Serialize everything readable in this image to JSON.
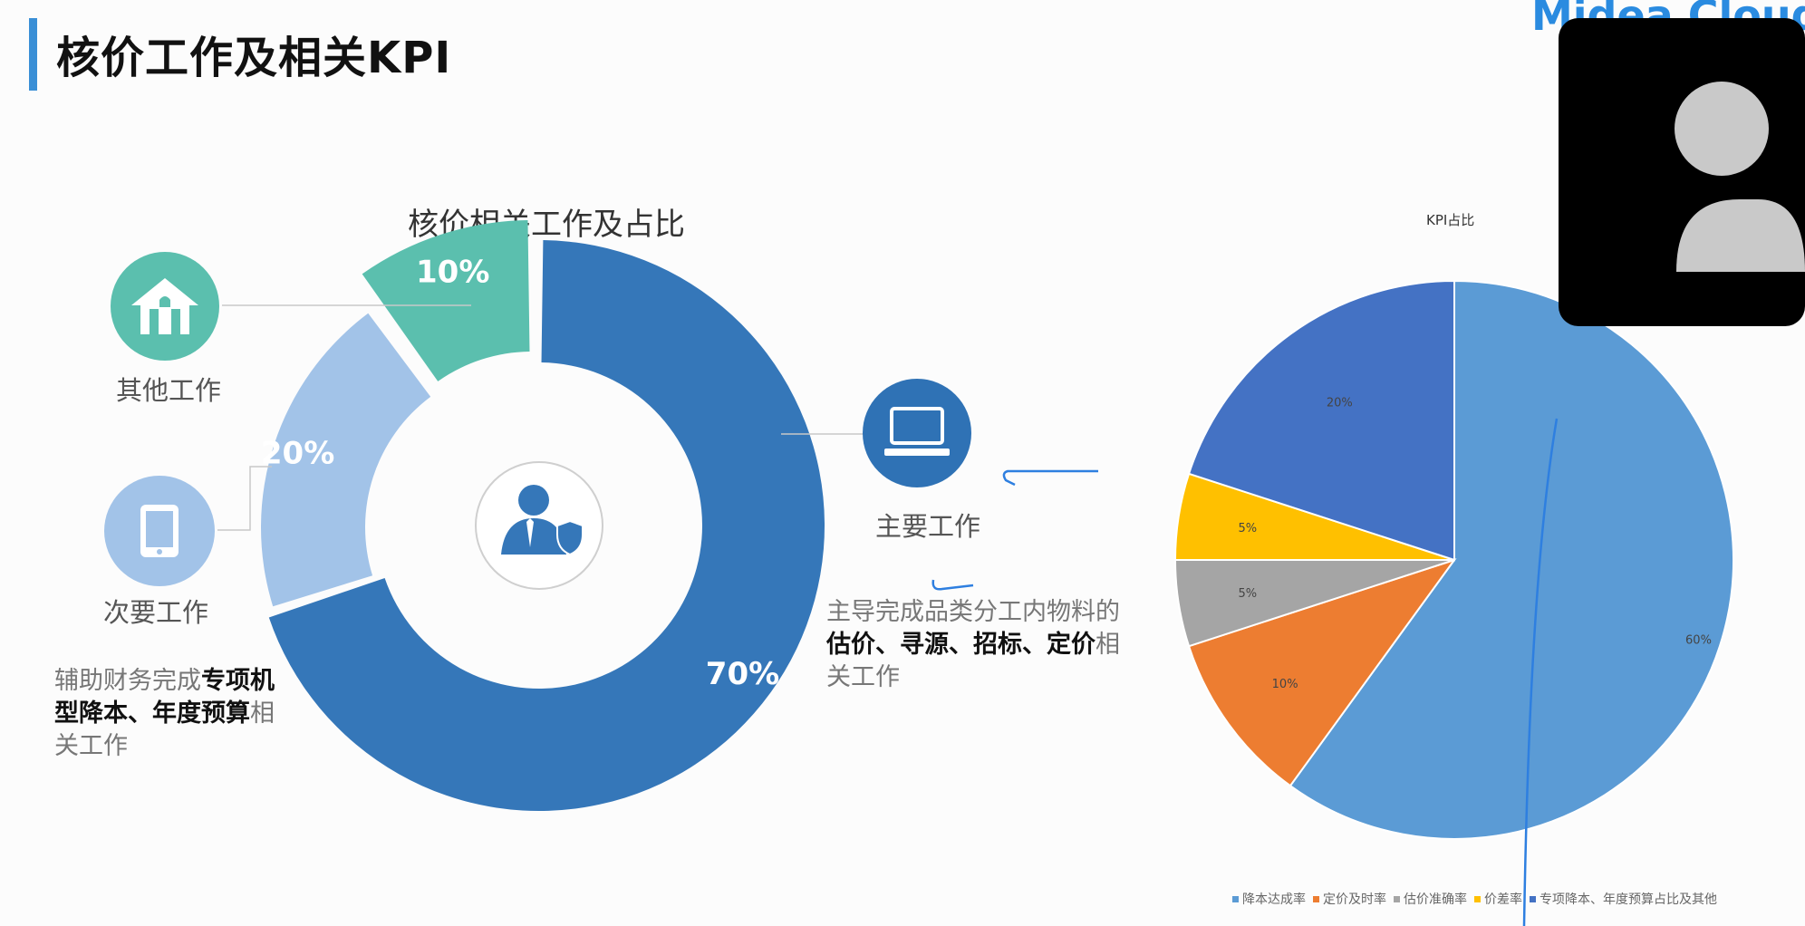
{
  "page": {
    "title": "核价工作及相关KPI",
    "brand": "Midea Cloud"
  },
  "donut": {
    "title": "核价相关工作及占比"
  },
  "categories": {
    "other": {
      "label": "其他工作",
      "icon": "house-icon"
    },
    "secondary": {
      "label": "次要工作",
      "icon": "tablet-icon",
      "desc_prefix": "辅助财务完成",
      "desc_bold": "专项机型降本、年度预算",
      "desc_suffix": "相关工作"
    },
    "main": {
      "label": "主要工作",
      "icon": "laptop-icon",
      "desc_prefix": "主导完成品类分工内物料的",
      "desc_bold1": "估价、寻源、招标、",
      "desc_bold2": "定价",
      "desc_suffix": "相关工作"
    }
  },
  "pie": {
    "title": "KPI占比"
  },
  "colors": {
    "main": "#3577b9",
    "secondary": "#a2c3e8",
    "other": "#5bbfae",
    "accent": "#3a8fd6"
  },
  "chart_data": [
    {
      "type": "pie",
      "title": "核价相关工作及占比",
      "categories": [
        "主要工作",
        "次要工作",
        "其他工作"
      ],
      "values": [
        70,
        20,
        10
      ],
      "data_labels": [
        "70%",
        "20%",
        "10%"
      ]
    },
    {
      "type": "pie",
      "title": "KPI占比",
      "categories": [
        "降本达成率",
        "定价及时率",
        "估价准确率",
        "价差率",
        "专项降本、年度预算占比及其他"
      ],
      "values": [
        60,
        10,
        5,
        5,
        20
      ],
      "data_labels": [
        "60%",
        "10%",
        "5%",
        "5%",
        "20%"
      ],
      "colors": [
        "#5b9bd5",
        "#ed7d31",
        "#a5a5a5",
        "#ffc000",
        "#4472c4"
      ],
      "legend": "bottom"
    }
  ]
}
